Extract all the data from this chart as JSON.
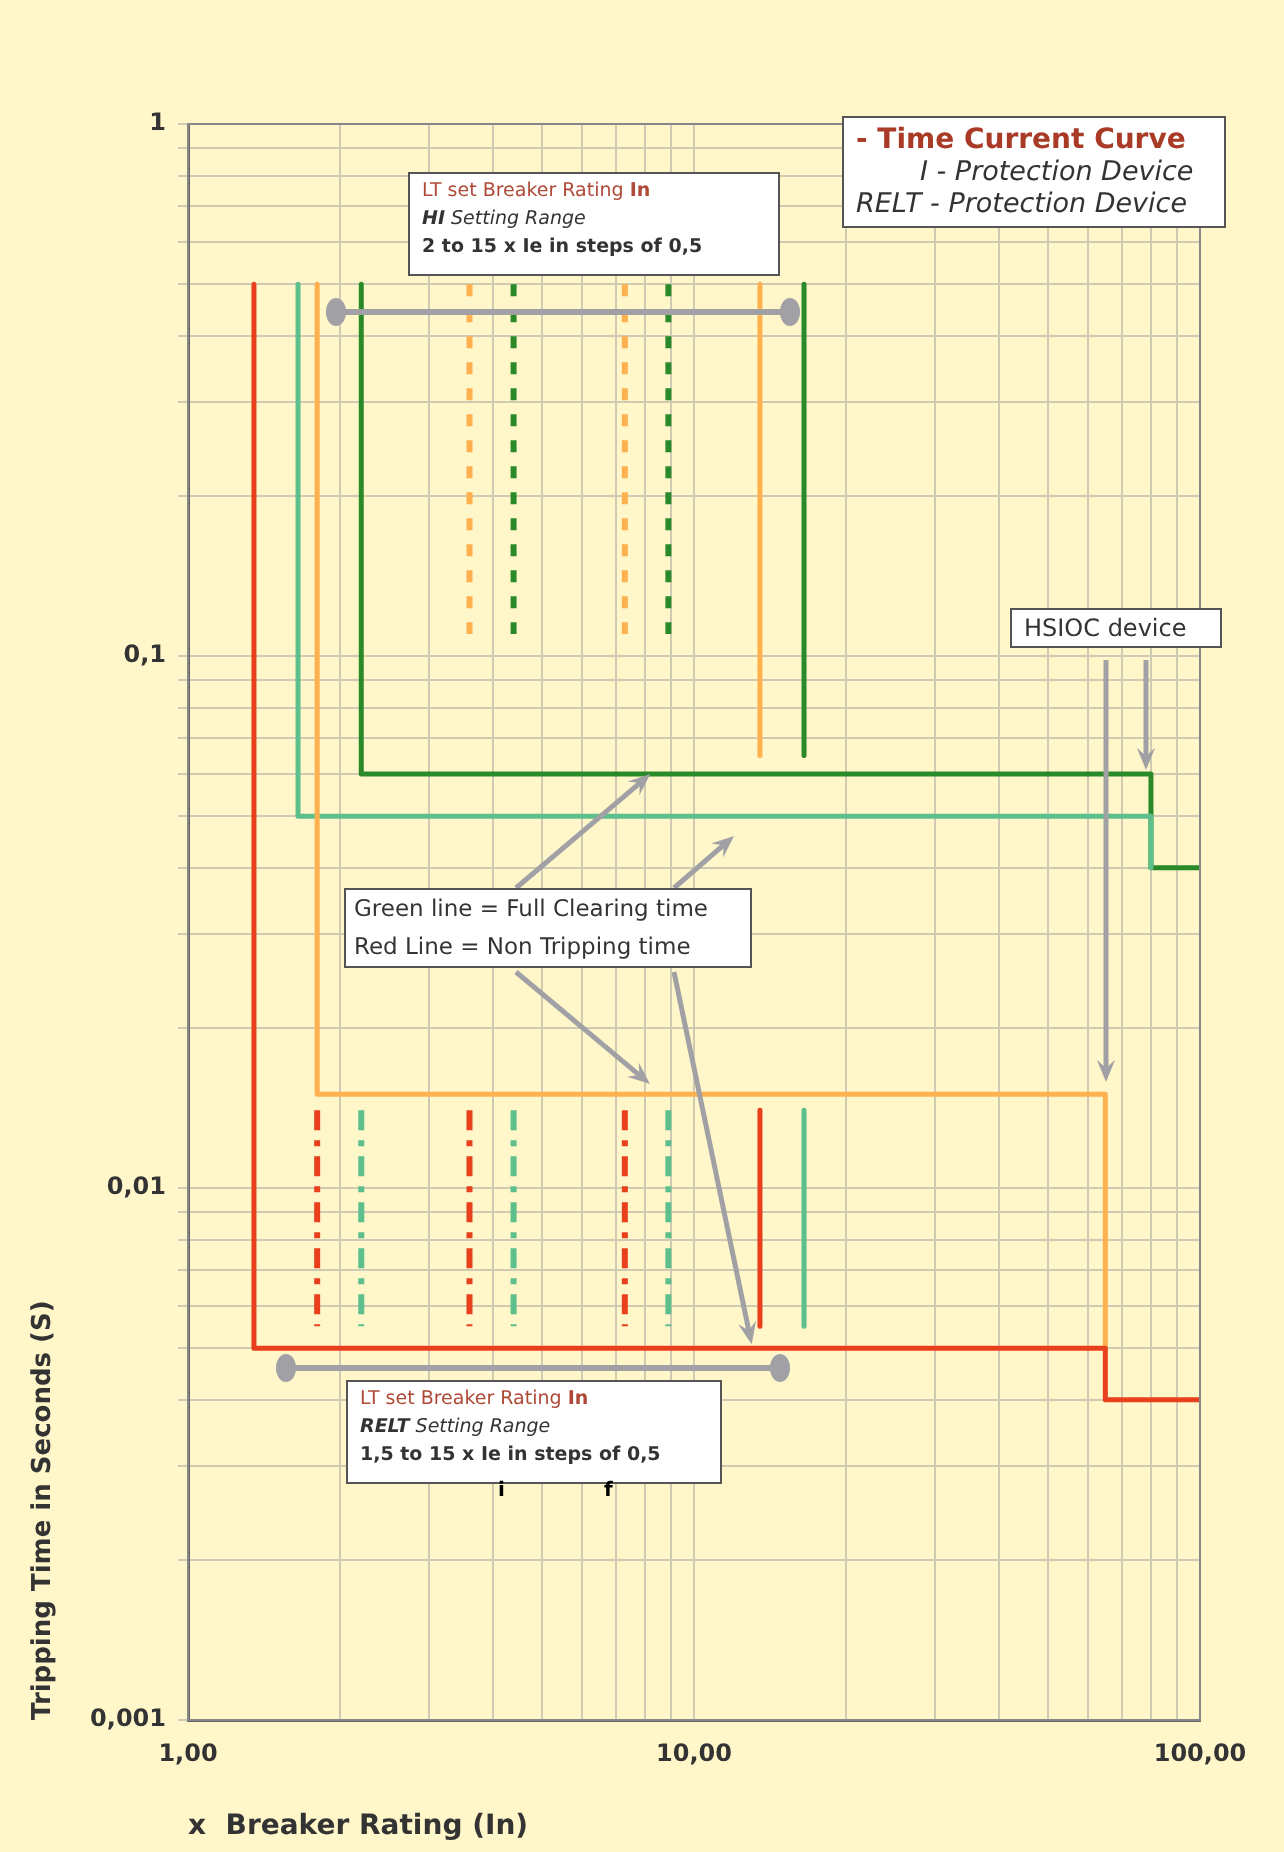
{
  "chart_data": {
    "type": "line",
    "title": "- Time Current Curve",
    "xlabel": "x  Breaker Rating (In)",
    "ylabel": "Tripping Time in Seconds (S)",
    "log": "xy",
    "grid": true,
    "legend": false,
    "marker": "none",
    "xlim": [
      1,
      100
    ],
    "ylim": [
      0.001,
      1
    ],
    "xticks": [
      {
        "value": 1,
        "label": "1,00"
      },
      {
        "value": 2,
        "label": null
      },
      {
        "value": 3,
        "label": null
      },
      {
        "value": 4,
        "label": null
      },
      {
        "value": 5,
        "label": null
      },
      {
        "value": 6,
        "label": null
      },
      {
        "value": 7,
        "label": null
      },
      {
        "value": 8,
        "label": null
      },
      {
        "value": 9,
        "label": null
      },
      {
        "value": 10,
        "label": "10,00"
      },
      {
        "value": 20,
        "label": null
      },
      {
        "value": 30,
        "label": null
      },
      {
        "value": 40,
        "label": null
      },
      {
        "value": 50,
        "label": null
      },
      {
        "value": 60,
        "label": null
      },
      {
        "value": 70,
        "label": null
      },
      {
        "value": 80,
        "label": null
      },
      {
        "value": 90,
        "label": null
      },
      {
        "value": 100,
        "label": "100,00"
      }
    ],
    "yticks": [
      {
        "value": 0.001,
        "label": "0,001"
      },
      {
        "value": 0.002,
        "label": null
      },
      {
        "value": 0.003,
        "label": null
      },
      {
        "value": 0.004,
        "label": null
      },
      {
        "value": 0.005,
        "label": null
      },
      {
        "value": 0.006,
        "label": null
      },
      {
        "value": 0.007,
        "label": null
      },
      {
        "value": 0.008,
        "label": null
      },
      {
        "value": 0.009,
        "label": null
      },
      {
        "value": 0.01,
        "label": "0,01"
      },
      {
        "value": 0.02,
        "label": null
      },
      {
        "value": 0.03,
        "label": null
      },
      {
        "value": 0.04,
        "label": null
      },
      {
        "value": 0.05,
        "label": null
      },
      {
        "value": 0.06,
        "label": null
      },
      {
        "value": 0.07,
        "label": null
      },
      {
        "value": 0.08,
        "label": null
      },
      {
        "value": 0.09,
        "label": null
      },
      {
        "value": 0.1,
        "label": "0,1"
      },
      {
        "value": 0.2,
        "label": null
      },
      {
        "value": 0.3,
        "label": null
      },
      {
        "value": 0.4,
        "label": null
      },
      {
        "value": 0.5,
        "label": null
      },
      {
        "value": 0.6,
        "label": null
      },
      {
        "value": 0.7,
        "label": null
      },
      {
        "value": 0.8,
        "label": null
      },
      {
        "value": 0.9,
        "label": null
      },
      {
        "value": 1,
        "label": "1"
      }
    ],
    "series": [
      {
        "color": "#e8401c",
        "line_style": "solid",
        "x": [
          1.35,
          1.35,
          65,
          65,
          100
        ],
        "values": [
          0.5,
          0.005,
          0.005,
          0.004,
          0.004
        ]
      },
      {
        "color": "#ffb04f",
        "line_style": "solid",
        "x": [
          1.8,
          1.8,
          65,
          65
        ],
        "values": [
          0.5,
          0.015,
          0.015,
          0.005
        ]
      },
      {
        "color": "#5cbf8c",
        "line_style": "solid",
        "x": [
          1.65,
          1.65,
          80,
          80
        ],
        "values": [
          0.5,
          0.05,
          0.05,
          0.04
        ]
      },
      {
        "color": "#2a8a2a",
        "line_style": "solid",
        "x": [
          2.2,
          2.2,
          80,
          80,
          100
        ],
        "values": [
          0.5,
          0.06,
          0.06,
          0.04,
          0.04
        ]
      },
      {
        "color": "#ffb04f",
        "line_style": "solid",
        "x": [
          13.5,
          13.5
        ],
        "values": [
          0.5,
          0.065
        ]
      },
      {
        "color": "#2a8a2a",
        "line_style": "solid",
        "x": [
          16.5,
          16.5
        ],
        "values": [
          0.5,
          0.065
        ]
      },
      {
        "color": "#ffb04f",
        "line_style": "dotted",
        "x": [
          3.6,
          3.6
        ],
        "values": [
          0.5,
          0.11
        ]
      },
      {
        "color": "#ffb04f",
        "line_style": "dotted",
        "x": [
          7.3,
          7.3
        ],
        "values": [
          0.5,
          0.11
        ]
      },
      {
        "color": "#2a8a2a",
        "line_style": "dotted",
        "x": [
          4.4,
          4.4
        ],
        "values": [
          0.5,
          0.11
        ]
      },
      {
        "color": "#2a8a2a",
        "line_style": "dotted",
        "x": [
          8.9,
          8.9
        ],
        "values": [
          0.5,
          0.11
        ]
      },
      {
        "color": "#e8401c",
        "line_style": "dashed",
        "x": [
          1.8,
          1.8
        ],
        "values": [
          0.014,
          0.0055
        ]
      },
      {
        "color": "#e8401c",
        "line_style": "dashed",
        "x": [
          3.6,
          3.6
        ],
        "values": [
          0.014,
          0.0055
        ]
      },
      {
        "color": "#e8401c",
        "line_style": "dashed",
        "x": [
          7.3,
          7.3
        ],
        "values": [
          0.014,
          0.0055
        ]
      },
      {
        "color": "#5cbf8c",
        "line_style": "dashed",
        "x": [
          2.2,
          2.2
        ],
        "values": [
          0.014,
          0.0055
        ]
      },
      {
        "color": "#5cbf8c",
        "line_style": "dashed",
        "x": [
          4.4,
          4.4
        ],
        "values": [
          0.014,
          0.0055
        ]
      },
      {
        "color": "#5cbf8c",
        "line_style": "dashed",
        "x": [
          8.9,
          8.9
        ],
        "values": [
          0.014,
          0.0055
        ]
      },
      {
        "color": "#e8401c",
        "line_style": "solid",
        "x": [
          13.5,
          13.5
        ],
        "values": [
          0.014,
          0.0055
        ]
      },
      {
        "color": "#5cbf8c",
        "line_style": "solid",
        "x": [
          16.5,
          16.5
        ],
        "values": [
          0.014,
          0.0055
        ]
      }
    ],
    "annotations": [
      "I -  Protection Device",
      "RELT - Protection Device",
      "LT set  Breaker Rating In",
      "HI Setting Range",
      "2 to 15 x Ie in steps of 0,5",
      "HSIOC device",
      {
        "text": "Green line = Full Clearing time",
        "x": 8.2,
        "y": 0.06
      },
      {
        "text": "Red Line  = Non Tripping time",
        "x": 13,
        "y": 0.005
      },
      "LT set  Breaker Rating In",
      "RELT Setting Range",
      "1,5 to 15 x Ie in steps of 0,5",
      "i",
      "f"
    ]
  }
}
